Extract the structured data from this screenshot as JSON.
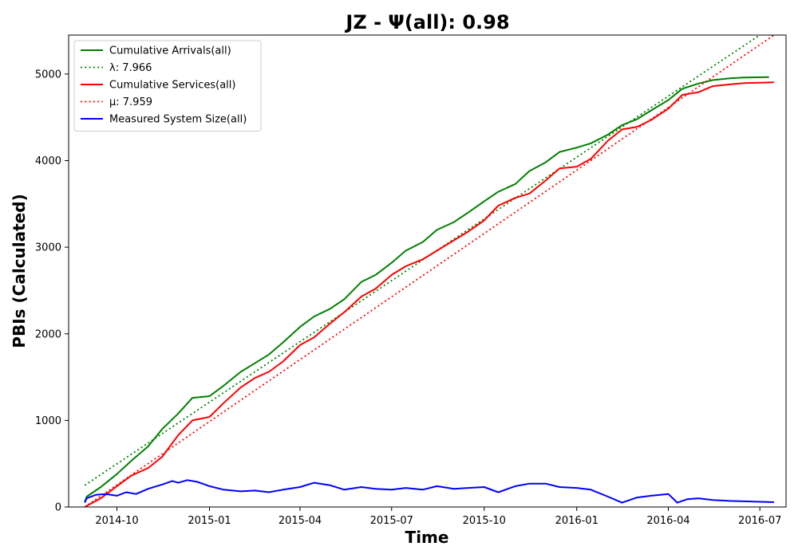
{
  "chart_data": {
    "type": "line",
    "title": "JZ -  Ψ(all): 0.98",
    "xlabel": "Time",
    "ylabel": "PBIs (Calculated)",
    "xlim": [
      "2014-08-14",
      "2016-07-27"
    ],
    "ylim": [
      0,
      5450
    ],
    "yticks": [
      0,
      1000,
      2000,
      3000,
      4000,
      5000
    ],
    "xticks": [
      {
        "date": "2014-10-01",
        "label": "2014-10"
      },
      {
        "date": "2015-01-01",
        "label": "2015-01"
      },
      {
        "date": "2015-04-01",
        "label": "2015-04"
      },
      {
        "date": "2015-07-01",
        "label": "2015-07"
      },
      {
        "date": "2015-10-01",
        "label": "2015-10"
      },
      {
        "date": "2016-01-01",
        "label": "2016-01"
      },
      {
        "date": "2016-04-01",
        "label": "2016-04"
      },
      {
        "date": "2016-07-01",
        "label": "2016-07"
      }
    ],
    "grid": false,
    "legend_position": "top-left",
    "series": [
      {
        "name": "Cumulative Arrivals(all)",
        "color": "#008000",
        "style": "solid",
        "points": [
          [
            "2014-08-30",
            60
          ],
          [
            "2014-09-01",
            120
          ],
          [
            "2014-09-15",
            230
          ],
          [
            "2014-10-01",
            380
          ],
          [
            "2014-10-15",
            530
          ],
          [
            "2014-11-01",
            700
          ],
          [
            "2014-11-15",
            900
          ],
          [
            "2014-12-01",
            1080
          ],
          [
            "2014-12-15",
            1260
          ],
          [
            "2015-01-01",
            1280
          ],
          [
            "2015-01-15",
            1400
          ],
          [
            "2015-02-01",
            1560
          ],
          [
            "2015-02-15",
            1660
          ],
          [
            "2015-03-01",
            1760
          ],
          [
            "2015-03-15",
            1900
          ],
          [
            "2015-04-01",
            2080
          ],
          [
            "2015-04-15",
            2200
          ],
          [
            "2015-05-01",
            2290
          ],
          [
            "2015-05-15",
            2400
          ],
          [
            "2015-06-01",
            2600
          ],
          [
            "2015-06-15",
            2680
          ],
          [
            "2015-07-01",
            2820
          ],
          [
            "2015-07-15",
            2960
          ],
          [
            "2015-08-01",
            3060
          ],
          [
            "2015-08-15",
            3200
          ],
          [
            "2015-09-01",
            3290
          ],
          [
            "2015-09-15",
            3400
          ],
          [
            "2015-10-01",
            3530
          ],
          [
            "2015-10-15",
            3640
          ],
          [
            "2015-11-01",
            3730
          ],
          [
            "2015-11-15",
            3880
          ],
          [
            "2015-12-01",
            3980
          ],
          [
            "2015-12-15",
            4100
          ],
          [
            "2016-01-01",
            4150
          ],
          [
            "2016-01-15",
            4200
          ],
          [
            "2016-02-01",
            4300
          ],
          [
            "2016-02-15",
            4410
          ],
          [
            "2016-03-01",
            4480
          ],
          [
            "2016-03-15",
            4580
          ],
          [
            "2016-04-01",
            4700
          ],
          [
            "2016-04-15",
            4830
          ],
          [
            "2016-05-01",
            4890
          ],
          [
            "2016-05-15",
            4930
          ],
          [
            "2016-06-01",
            4950
          ],
          [
            "2016-06-15",
            4960
          ],
          [
            "2016-07-10",
            4965
          ]
        ]
      },
      {
        "name": "λ: 7.966",
        "color": "#008000",
        "style": "dotted",
        "points": [
          [
            "2014-08-30",
            250
          ],
          [
            "2016-07-01",
            5450
          ]
        ]
      },
      {
        "name": "Cumulative Services(all)",
        "color": "#ff0000",
        "style": "solid",
        "points": [
          [
            "2014-08-30",
            0
          ],
          [
            "2014-09-15",
            100
          ],
          [
            "2014-10-01",
            240
          ],
          [
            "2014-10-15",
            360
          ],
          [
            "2014-11-01",
            450
          ],
          [
            "2014-11-15",
            580
          ],
          [
            "2014-12-01",
            830
          ],
          [
            "2014-12-15",
            1000
          ],
          [
            "2015-01-01",
            1040
          ],
          [
            "2015-01-15",
            1200
          ],
          [
            "2015-02-01",
            1380
          ],
          [
            "2015-02-15",
            1490
          ],
          [
            "2015-03-01",
            1560
          ],
          [
            "2015-03-15",
            1680
          ],
          [
            "2015-04-01",
            1870
          ],
          [
            "2015-04-15",
            1960
          ],
          [
            "2015-05-01",
            2120
          ],
          [
            "2015-05-15",
            2250
          ],
          [
            "2015-06-01",
            2430
          ],
          [
            "2015-06-15",
            2520
          ],
          [
            "2015-07-01",
            2680
          ],
          [
            "2015-07-15",
            2780
          ],
          [
            "2015-08-01",
            2860
          ],
          [
            "2015-08-15",
            2960
          ],
          [
            "2015-09-01",
            3080
          ],
          [
            "2015-09-15",
            3180
          ],
          [
            "2015-10-01",
            3310
          ],
          [
            "2015-10-15",
            3480
          ],
          [
            "2015-11-01",
            3570
          ],
          [
            "2015-11-15",
            3620
          ],
          [
            "2015-12-01",
            3770
          ],
          [
            "2015-12-15",
            3910
          ],
          [
            "2016-01-01",
            3930
          ],
          [
            "2016-01-15",
            4020
          ],
          [
            "2016-02-01",
            4230
          ],
          [
            "2016-02-15",
            4360
          ],
          [
            "2016-03-01",
            4390
          ],
          [
            "2016-03-15",
            4470
          ],
          [
            "2016-04-01",
            4600
          ],
          [
            "2016-04-15",
            4760
          ],
          [
            "2016-05-01",
            4790
          ],
          [
            "2016-05-15",
            4860
          ],
          [
            "2016-06-01",
            4880
          ],
          [
            "2016-06-15",
            4895
          ],
          [
            "2016-07-15",
            4905
          ]
        ]
      },
      {
        "name": "μ: 7.959",
        "color": "#ff0000",
        "style": "dotted",
        "points": [
          [
            "2014-08-30",
            0
          ],
          [
            "2016-07-15",
            5450
          ]
        ]
      },
      {
        "name": "Measured System Size(all)",
        "color": "#0000ff",
        "style": "solid",
        "points": [
          [
            "2014-08-30",
            50
          ],
          [
            "2014-09-01",
            100
          ],
          [
            "2014-09-10",
            140
          ],
          [
            "2014-09-20",
            150
          ],
          [
            "2014-10-01",
            130
          ],
          [
            "2014-10-10",
            170
          ],
          [
            "2014-10-20",
            150
          ],
          [
            "2014-11-01",
            210
          ],
          [
            "2014-11-15",
            260
          ],
          [
            "2014-11-25",
            300
          ],
          [
            "2014-12-01",
            280
          ],
          [
            "2014-12-10",
            310
          ],
          [
            "2014-12-20",
            290
          ],
          [
            "2015-01-01",
            240
          ],
          [
            "2015-01-15",
            200
          ],
          [
            "2015-02-01",
            180
          ],
          [
            "2015-02-15",
            190
          ],
          [
            "2015-03-01",
            170
          ],
          [
            "2015-03-15",
            200
          ],
          [
            "2015-04-01",
            230
          ],
          [
            "2015-04-15",
            280
          ],
          [
            "2015-05-01",
            250
          ],
          [
            "2015-05-15",
            200
          ],
          [
            "2015-06-01",
            230
          ],
          [
            "2015-06-15",
            210
          ],
          [
            "2015-07-01",
            200
          ],
          [
            "2015-07-15",
            220
          ],
          [
            "2015-08-01",
            200
          ],
          [
            "2015-08-15",
            240
          ],
          [
            "2015-09-01",
            210
          ],
          [
            "2015-09-15",
            220
          ],
          [
            "2015-10-01",
            230
          ],
          [
            "2015-10-15",
            170
          ],
          [
            "2015-11-01",
            240
          ],
          [
            "2015-11-15",
            270
          ],
          [
            "2015-12-01",
            270
          ],
          [
            "2015-12-15",
            230
          ],
          [
            "2016-01-01",
            220
          ],
          [
            "2016-01-15",
            200
          ],
          [
            "2016-02-01",
            120
          ],
          [
            "2016-02-15",
            50
          ],
          [
            "2016-03-01",
            110
          ],
          [
            "2016-03-15",
            130
          ],
          [
            "2016-04-01",
            150
          ],
          [
            "2016-04-10",
            50
          ],
          [
            "2016-04-20",
            90
          ],
          [
            "2016-05-01",
            100
          ],
          [
            "2016-05-15",
            80
          ],
          [
            "2016-06-01",
            70
          ],
          [
            "2016-06-15",
            65
          ],
          [
            "2016-07-15",
            55
          ]
        ]
      }
    ],
    "legend": [
      {
        "label": "Cumulative Arrivals(all)",
        "color": "#008000",
        "style": "solid"
      },
      {
        "label": "λ: 7.966",
        "color": "#008000",
        "style": "dotted"
      },
      {
        "label": "Cumulative Services(all)",
        "color": "#ff0000",
        "style": "solid"
      },
      {
        "label": "μ: 7.959",
        "color": "#ff0000",
        "style": "dotted"
      },
      {
        "label": "Measured System Size(all)",
        "color": "#0000ff",
        "style": "solid"
      }
    ]
  }
}
